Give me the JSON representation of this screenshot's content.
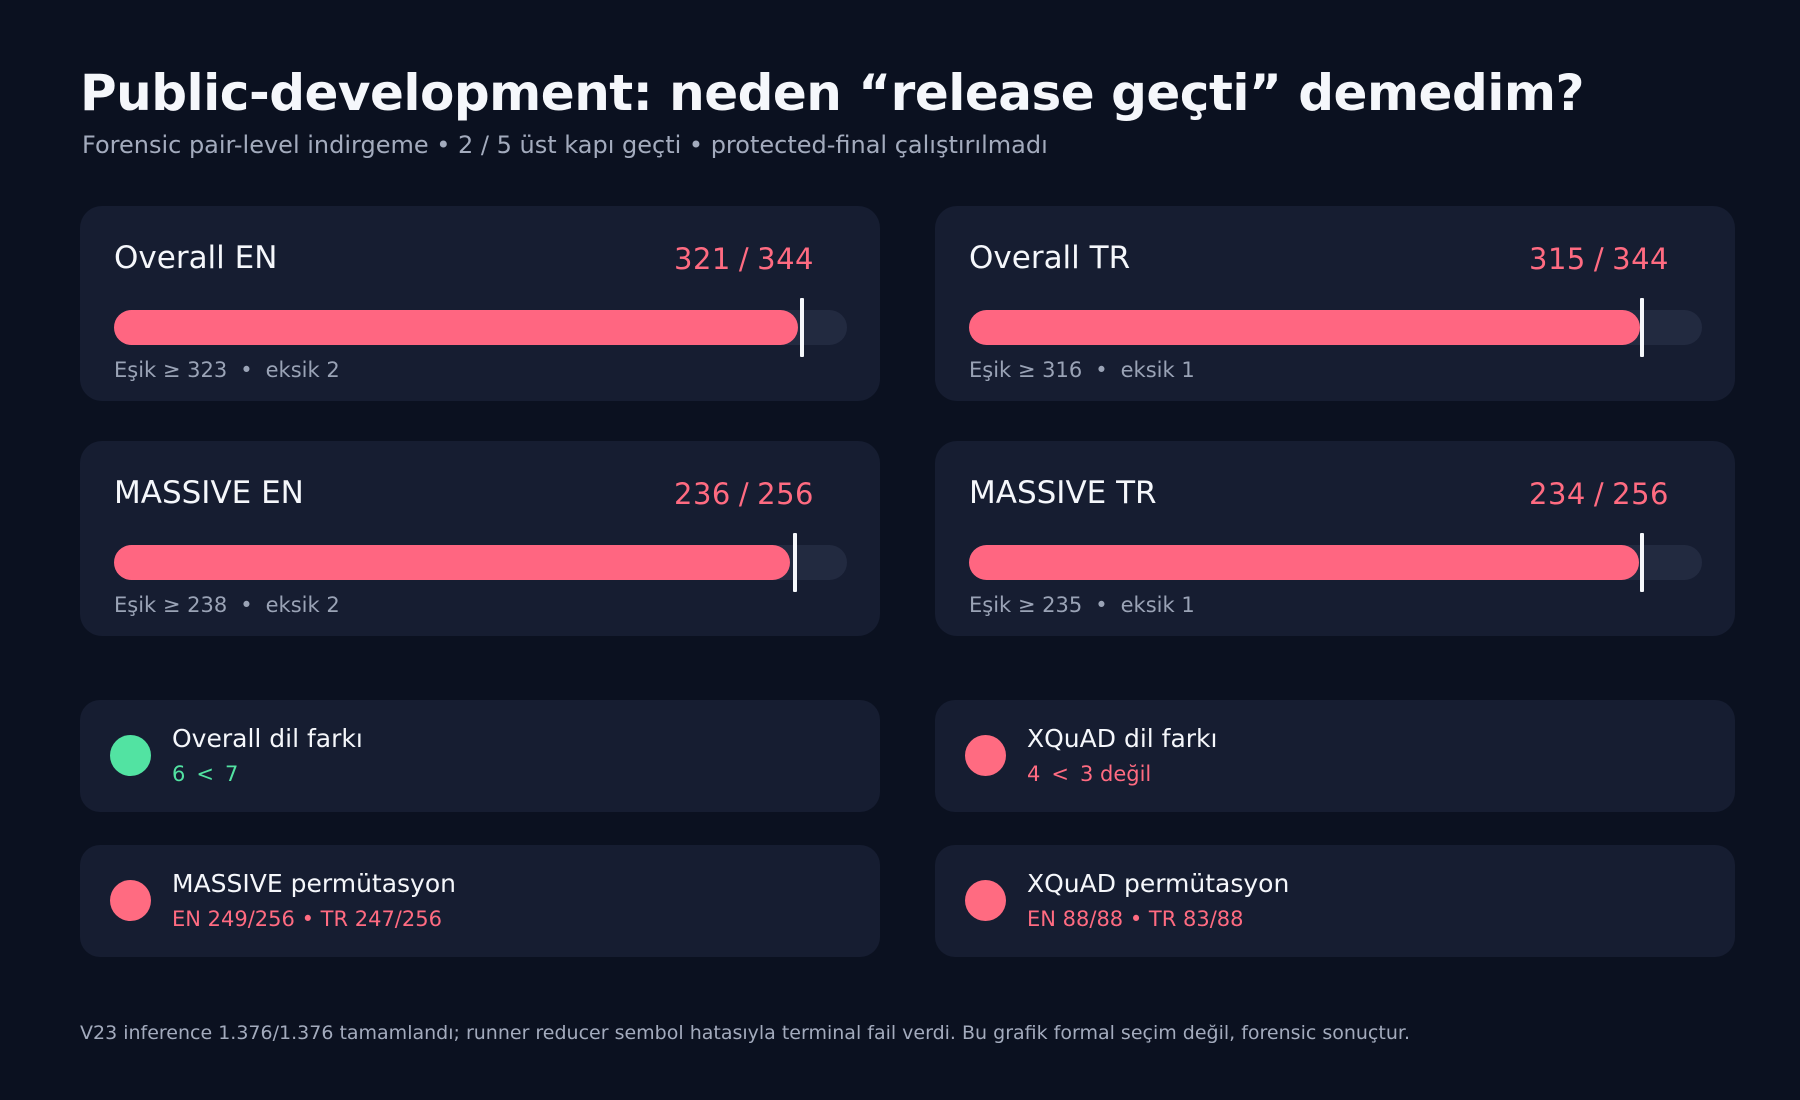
{
  "header": {
    "title": "Public-development: neden “release geçti” demedim?",
    "subtitle": "Forensic pair-level indirgeme • 2 / 5 üst kapı geçti • protected-final çalıştırılmadı"
  },
  "chart_data": {
    "type": "bar",
    "orientation": "horizontal",
    "bar_color": "#ff6681",
    "threshold_color": "#f5f7fb",
    "panels": [
      {
        "label": "Overall EN",
        "value": 321,
        "total": 344,
        "threshold": 323,
        "score_text": "321",
        "total_text": "344",
        "sep": "/",
        "threshold_text": "Eşik ≥ 323",
        "missing_text": "eksik 2",
        "dot": "•"
      },
      {
        "label": "Overall TR",
        "value": 315,
        "total": 344,
        "threshold": 316,
        "score_text": "315",
        "total_text": "344",
        "sep": "/",
        "threshold_text": "Eşik ≥ 316",
        "missing_text": "eksik 1",
        "dot": "•"
      },
      {
        "label": "MASSIVE EN",
        "value": 236,
        "total": 256,
        "threshold": 238,
        "score_text": "236",
        "total_text": "256",
        "sep": "/",
        "threshold_text": "Eşik ≥ 238",
        "missing_text": "eksik 2",
        "dot": "•"
      },
      {
        "label": "MASSIVE TR",
        "value": 234,
        "total": 256,
        "threshold": 235,
        "score_text": "234",
        "total_text": "256",
        "sep": "/",
        "threshold_text": "Eşik ≥ 235",
        "missing_text": "eksik 1",
        "dot": "•"
      }
    ],
    "gates": [
      {
        "title": "Overall dil farkı",
        "passed": true,
        "color": "#52e3a2",
        "a": "6",
        "op": "<",
        "b": "7"
      },
      {
        "title": "XQuAD dil farkı",
        "passed": false,
        "color": "#ff6b81",
        "a": "4",
        "op": "<",
        "b": "3 değil"
      },
      {
        "title": "MASSIVE permütasyon",
        "passed": false,
        "color": "#ff6b81",
        "detail": "EN 249/256 • TR 247/256"
      },
      {
        "title": "XQuAD permütasyon",
        "passed": false,
        "color": "#ff6b81",
        "detail": "EN 88/88 • TR 83/88"
      }
    ]
  },
  "footnote": "V23 inference 1.376/1.376 tamamlandı; runner reducer sembol hatasıyla terminal fail verdi. Bu grafik formal seçim değil, forensic sonuçtur."
}
